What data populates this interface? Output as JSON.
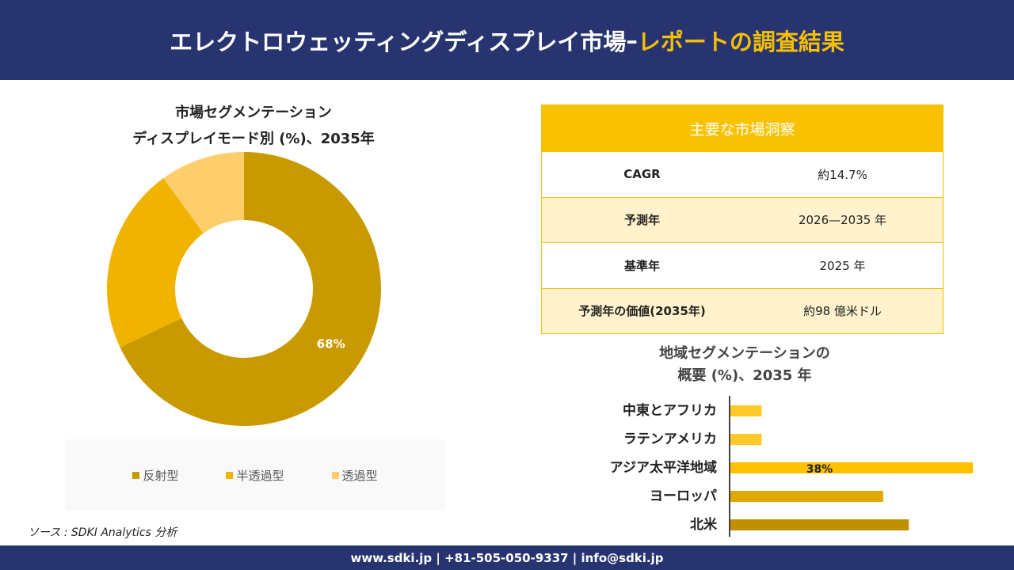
{
  "header": {
    "title_main": "エレクトロウェッティングディスプレイ市場",
    "title_sep": "–",
    "title_accent": "レポートの調査結果"
  },
  "insights": {
    "title": "主要な市場洞察",
    "rows": [
      {
        "label": "CAGR",
        "value": "約14.7%"
      },
      {
        "label": "予測年",
        "value": "2026—2035 年"
      },
      {
        "label": "基準年",
        "value": "2025 年"
      },
      {
        "label": "予測年の価値(2035年)",
        "value": "約98 億米ドル"
      }
    ]
  },
  "source": "ソース : SDKI Analytics 分析",
  "footer": "www.sdki.jp | +81-505-050-9337 | info@sdki.jp",
  "chart_data": [
    {
      "type": "pie",
      "title_line1": "市場セグメンテーション",
      "title_line2": "ディスプレイモード別 (%)、2035年",
      "categories": [
        "反射型",
        "半透過型",
        "透過型"
      ],
      "values": [
        68,
        22,
        10
      ],
      "colors": [
        "#c99a00",
        "#f0b400",
        "#ffcd6b"
      ],
      "labels": [
        "68%",
        "",
        ""
      ],
      "legend": "bottom"
    },
    {
      "type": "bar",
      "orientation": "horizontal",
      "title_line1": "地域セグメンテーションの",
      "title_line2": "概要 (%)、2035 年",
      "categories": [
        "中東とアフリカ",
        "ラテンアメリカ",
        "アジア太平洋地域",
        "ヨーロッパ",
        "北米"
      ],
      "values": [
        5,
        5,
        38,
        24,
        28
      ],
      "colors": [
        "#ffc928",
        "#ffc928",
        "#ffc000",
        "#e0a800",
        "#c09000"
      ],
      "labels": [
        "",
        "",
        "38%",
        "",
        ""
      ],
      "xlim": [
        0,
        38
      ]
    }
  ]
}
